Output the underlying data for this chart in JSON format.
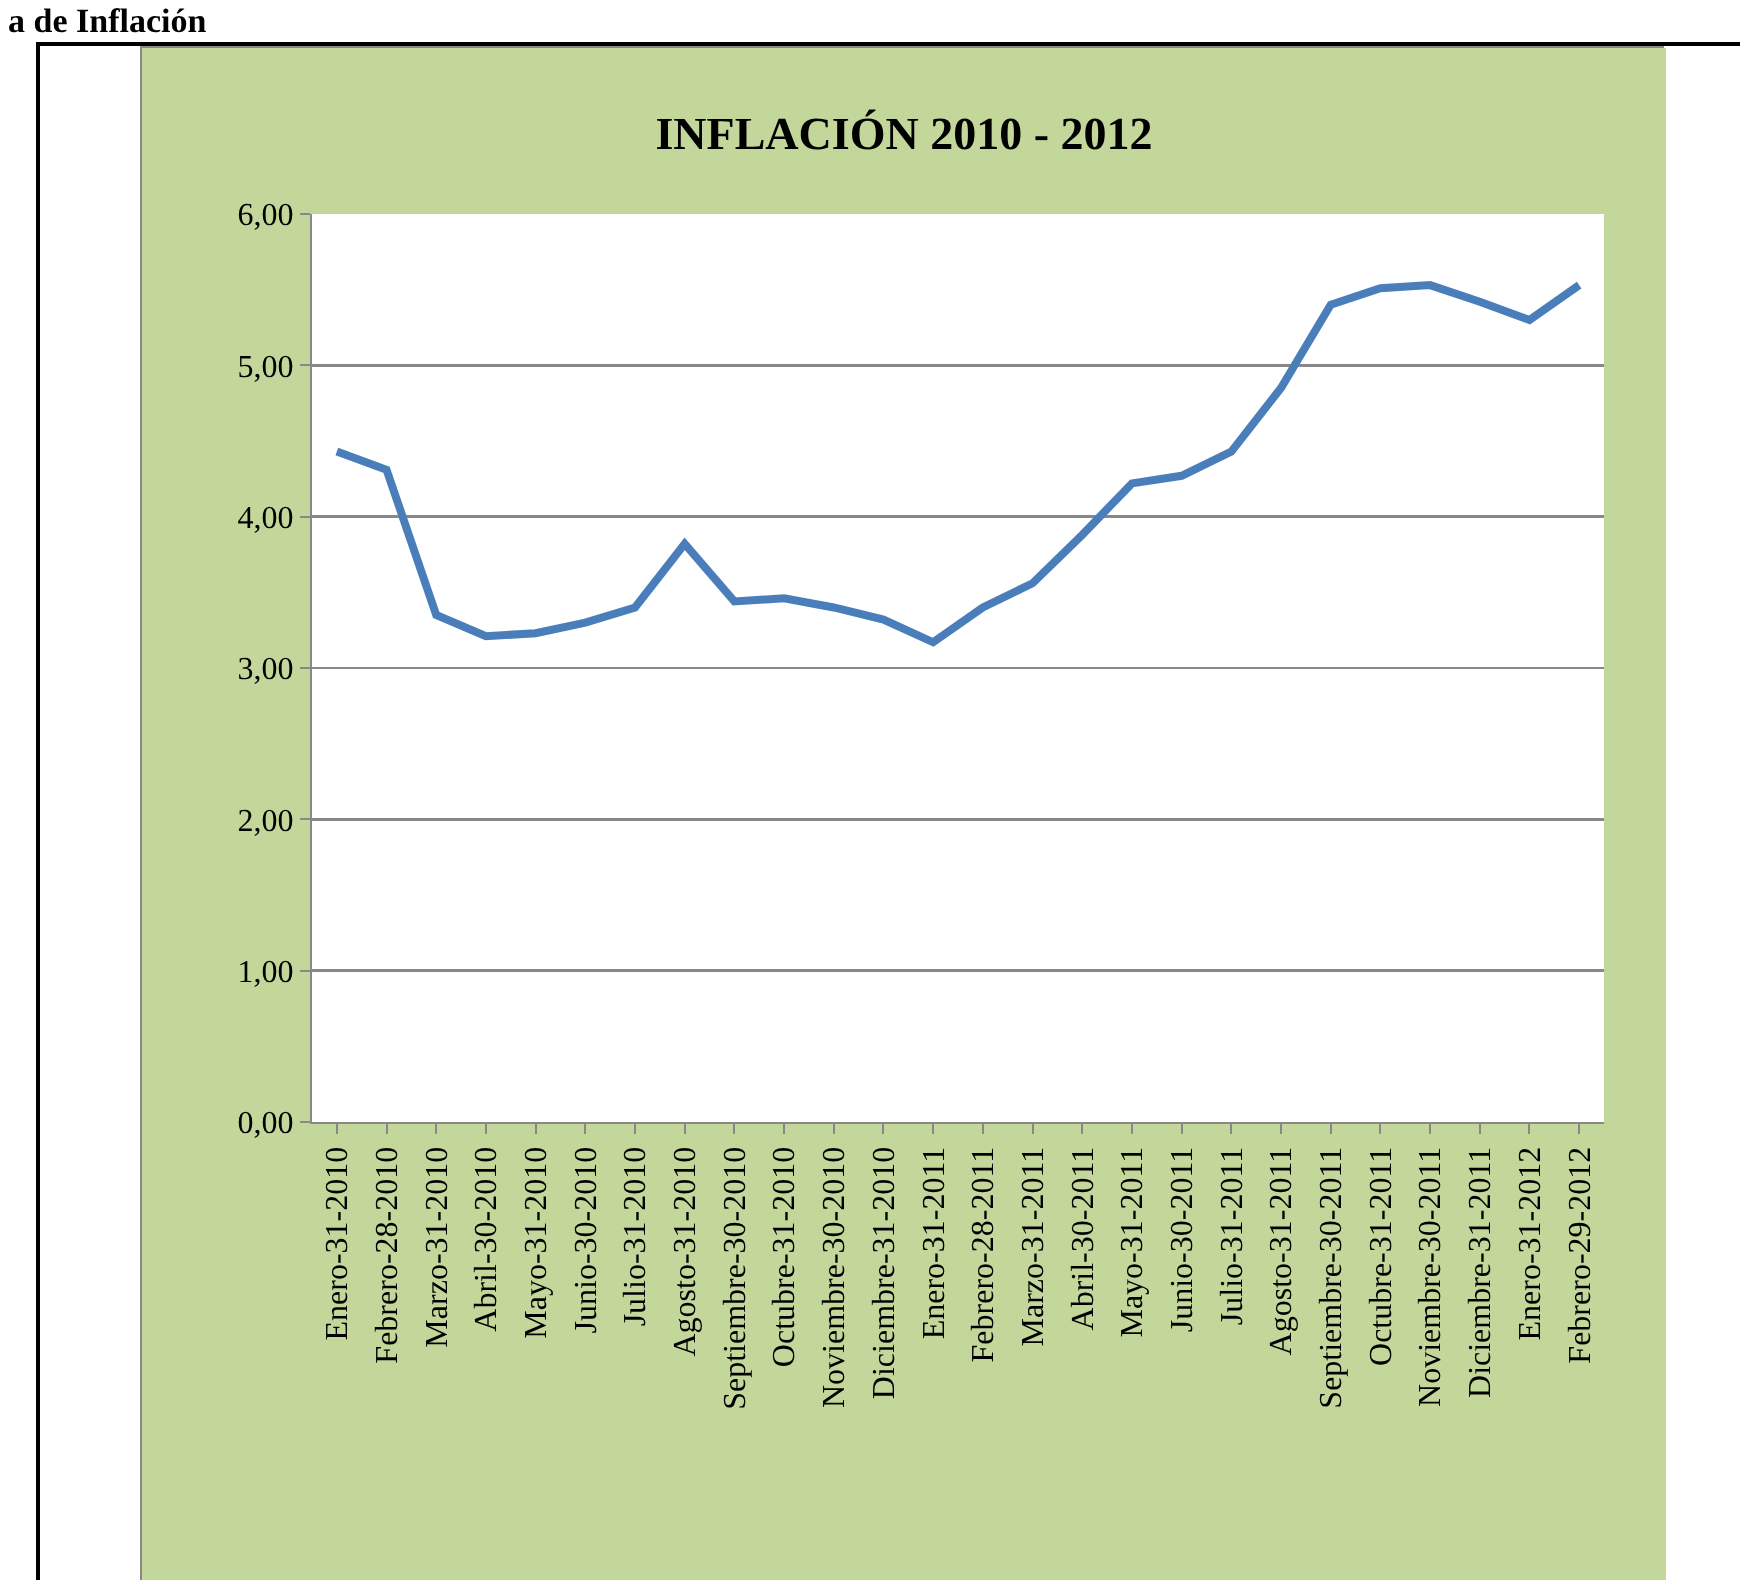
{
  "chart_data": {
    "type": "line",
    "title": "INFLACIÓN 2010 - 2012",
    "annotations": [
      "a de Inflación"
    ],
    "categories": [
      "Enero-31-2010",
      "Febrero-28-2010",
      "Marzo-31-2010",
      "Abril-30-2010",
      "Mayo-31-2010",
      "Junio-30-2010",
      "Julio-31-2010",
      "Agosto-31-2010",
      "Septiembre-30-2010",
      "Octubre-31-2010",
      "Noviembre-30-2010",
      "Diciembre-31-2010",
      "Enero-31-2011",
      "Febrero-28-2011",
      "Marzo-31-2011",
      "Abril-30-2011",
      "Mayo-31-2011",
      "Junio-30-2011",
      "Julio-31-2011",
      "Agosto-31-2011",
      "Septiembre-30-2011",
      "Octubre-31-2011",
      "Noviembre-30-2011",
      "Diciembre-31-2011",
      "Enero-31-2012",
      "Febrero-29-2012"
    ],
    "series": [
      {
        "color": "#4a7ebb",
        "values": [
          4.43,
          4.31,
          3.35,
          3.21,
          3.23,
          3.3,
          3.4,
          3.82,
          3.44,
          3.46,
          3.4,
          3.32,
          3.17,
          3.4,
          3.56,
          3.88,
          4.22,
          4.27,
          4.43,
          4.85,
          5.4,
          5.51,
          5.53,
          5.42,
          5.3,
          5.53
        ]
      }
    ],
    "ylim": [
      0,
      6
    ],
    "yticks": [
      {
        "value": 0,
        "label": "0,00"
      },
      {
        "value": 1,
        "label": "1,00"
      },
      {
        "value": 2,
        "label": "2,00"
      },
      {
        "value": 3,
        "label": "3,00"
      },
      {
        "value": 4,
        "label": "4,00"
      },
      {
        "value": 5,
        "label": "5,00"
      },
      {
        "value": 6,
        "label": "6,00"
      }
    ],
    "grid": "y",
    "marker": "none",
    "line_style": "solid"
  }
}
